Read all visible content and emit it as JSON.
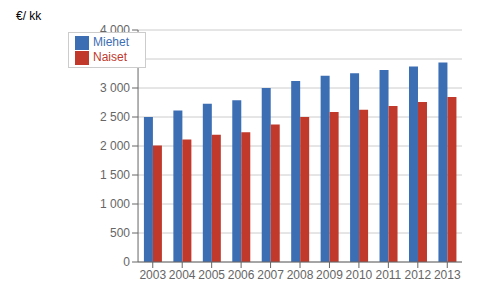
{
  "chart_data": {
    "type": "bar",
    "ylabel": "€/ kk",
    "categories": [
      "2003",
      "2004",
      "2005",
      "2006",
      "2007",
      "2008",
      "2009",
      "2010",
      "2011",
      "2012",
      "2013"
    ],
    "series": [
      {
        "name": "Miehet",
        "color": "#3C6EB4",
        "values": [
          2500,
          2610,
          2730,
          2790,
          3000,
          3120,
          3210,
          3255,
          3310,
          3370,
          3440
        ]
      },
      {
        "name": "Naiset",
        "color": "#C0392B",
        "values": [
          2010,
          2110,
          2195,
          2235,
          2370,
          2500,
          2585,
          2625,
          2690,
          2760,
          2845
        ]
      }
    ],
    "ylim": [
      0,
      4000
    ],
    "yticks": [
      0,
      500,
      {
        "value": 1000,
        "label": "1 000"
      },
      {
        "value": 1500,
        "label": "1 500"
      },
      {
        "value": 2000,
        "label": "2 000"
      },
      {
        "value": 2500,
        "label": "2 500"
      },
      {
        "value": 3000,
        "label": "3 000"
      },
      {
        "value": 3500,
        "label": "3 500"
      },
      {
        "value": 4000,
        "label": "4 000"
      }
    ],
    "grid": true,
    "legend": "upper left"
  }
}
